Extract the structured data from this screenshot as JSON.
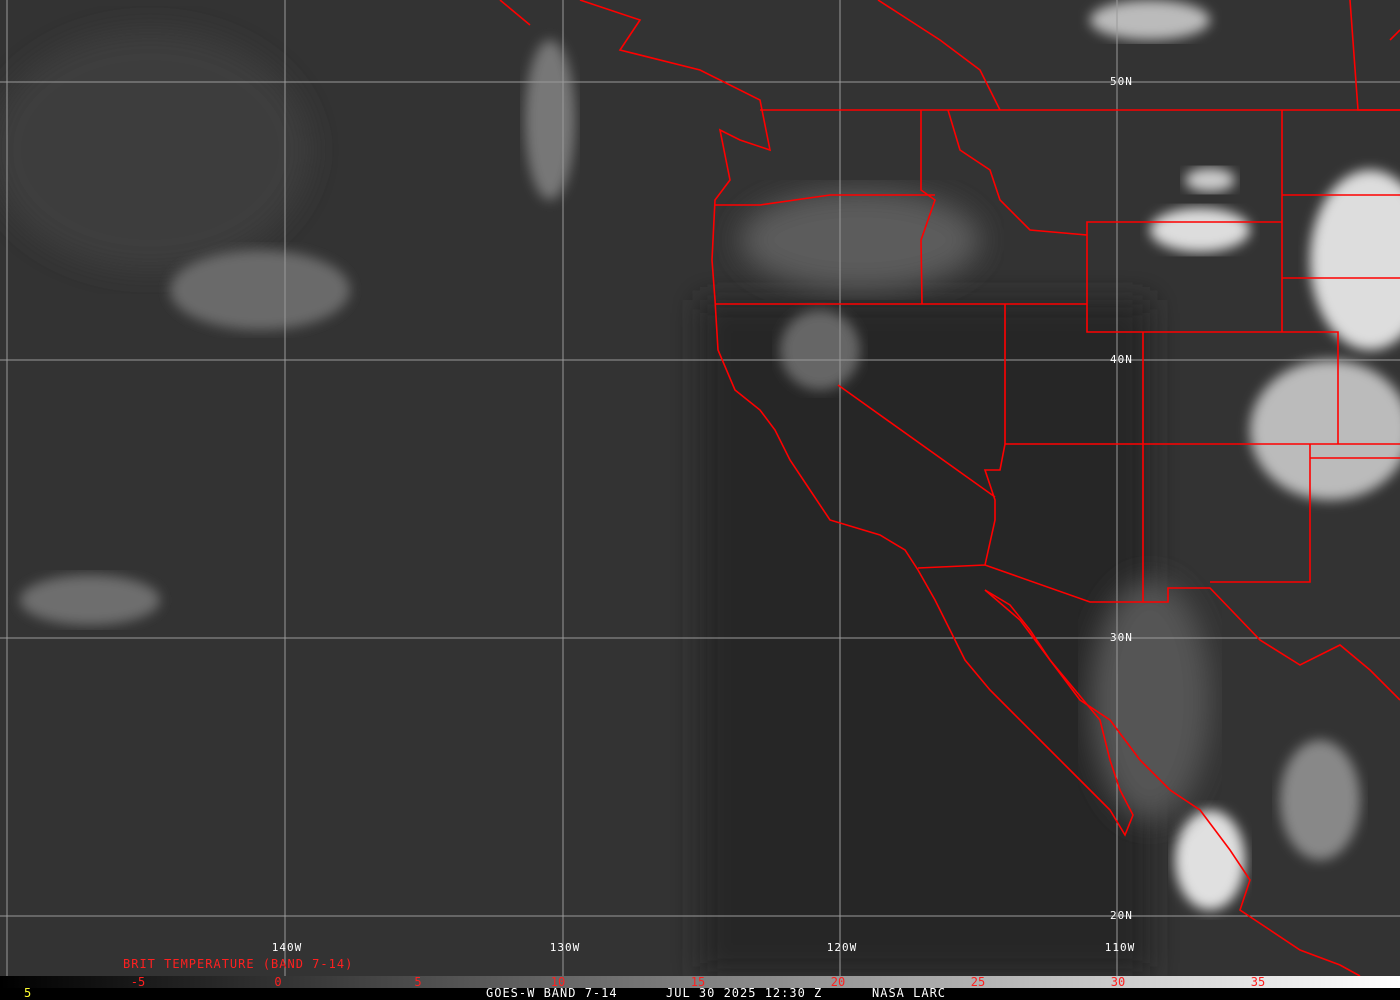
{
  "map": {
    "latitude_labels": [
      "50N",
      "40N",
      "30N",
      "20N"
    ],
    "longitude_labels": [
      "140W",
      "130W",
      "120W",
      "110W"
    ],
    "boundary_color": "#ff0000",
    "grid_color": "#9a9a9a"
  },
  "legend": {
    "title": "BRIT TEMPERATURE (BAND 7-14)",
    "ticks": [
      "-5",
      "0",
      "5",
      "10",
      "15",
      "20",
      "25",
      "30",
      "35"
    ],
    "tick_color": "#ff2020"
  },
  "footer": {
    "frame_number": "5",
    "satellite_band": "GOES-W BAND 7-14",
    "datetime": "JUL 30 2025 12:30 Z",
    "source": "NASA LARC"
  }
}
